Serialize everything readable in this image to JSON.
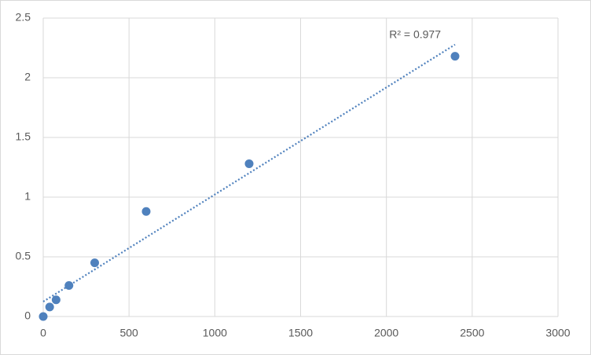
{
  "chart_data": {
    "type": "scatter",
    "x": [
      0,
      37.5,
      75,
      150,
      300,
      600,
      1200,
      2400
    ],
    "series": [
      {
        "color": "#4f81bd",
        "values": [
          0,
          0.08,
          0.14,
          0.26,
          0.45,
          0.88,
          1.28,
          2.18
        ]
      }
    ],
    "xlim": [
      0,
      3000
    ],
    "xticks": [
      0,
      500,
      1000,
      1500,
      2000,
      2500,
      3000
    ],
    "ylim": [
      0,
      2.5
    ],
    "yticks": [
      0,
      0.5,
      1,
      1.5,
      2,
      2.5
    ],
    "grid": true,
    "trendline": "linear",
    "annotation": "R² = 0.977"
  }
}
